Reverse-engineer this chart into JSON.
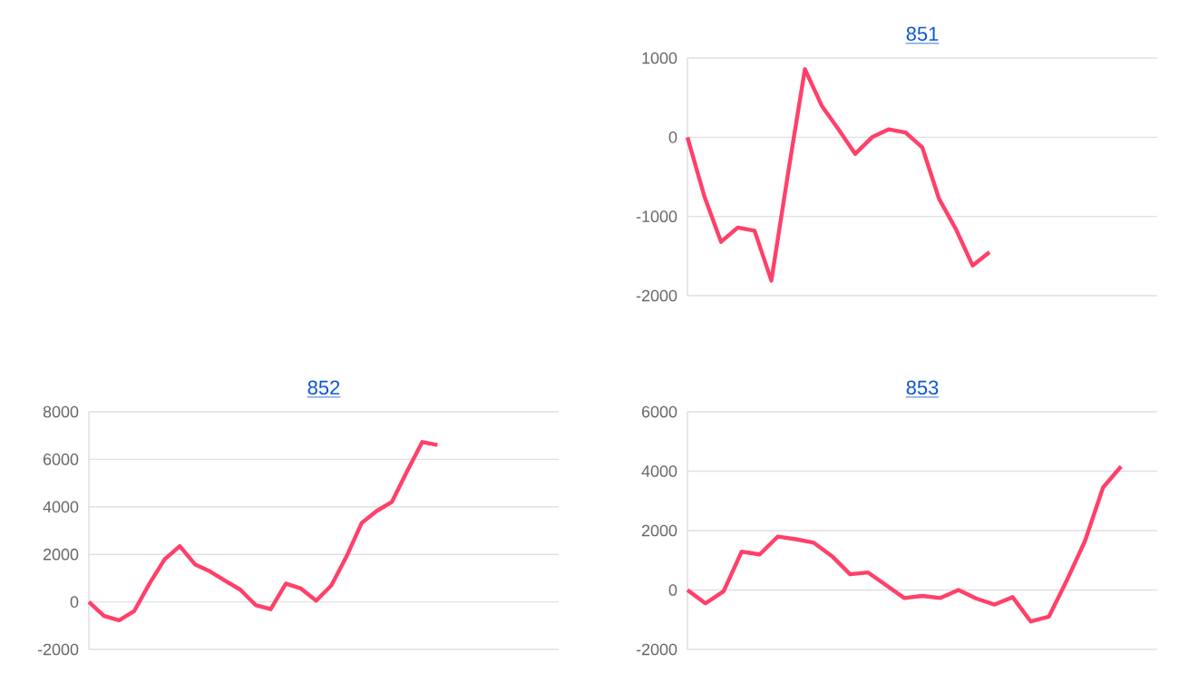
{
  "chart_data": [
    {
      "type": "line",
      "title": "851",
      "color": "#ff4069",
      "grid": "y",
      "tick_labels": "y",
      "ylim": [
        -2000,
        1000
      ],
      "yticks": [
        -2000,
        -1000,
        0,
        1000
      ],
      "categories": [
        null,
        null,
        null,
        null,
        null,
        null,
        null,
        null,
        null,
        null,
        null,
        null,
        null,
        null,
        null,
        null,
        null,
        null,
        null,
        null,
        null,
        null,
        null,
        null,
        null,
        null,
        null,
        null,
        null
      ],
      "values": [
        0,
        -740,
        -1320,
        -1140,
        -1180,
        -1810,
        -450,
        860,
        400,
        100,
        -210,
        0,
        100,
        60,
        -130,
        -780,
        -1160,
        -1620,
        -1450,
        null,
        null,
        null,
        null,
        null,
        null,
        null,
        null,
        null,
        null
      ]
    },
    {
      "type": "line",
      "title": "852",
      "color": "#ff4069",
      "grid": "y",
      "tick_labels": "y",
      "ylim": [
        -2000,
        8000
      ],
      "yticks": [
        -2000,
        0,
        2000,
        4000,
        6000,
        8000
      ],
      "categories": [
        null,
        null,
        null,
        null,
        null,
        null,
        null,
        null,
        null,
        null,
        null,
        null,
        null,
        null,
        null,
        null,
        null,
        null,
        null,
        null,
        null,
        null,
        null,
        null,
        null,
        null,
        null,
        null,
        null,
        null,
        null,
        null
      ],
      "values": [
        0,
        -590,
        -770,
        -380,
        770,
        1790,
        2350,
        1580,
        1280,
        890,
        510,
        -130,
        -310,
        770,
        560,
        50,
        690,
        1910,
        3320,
        3830,
        4210,
        5500,
        6730,
        6600,
        null,
        null,
        null,
        null,
        null,
        null,
        null,
        null
      ]
    },
    {
      "type": "line",
      "title": "853",
      "color": "#ff4069",
      "grid": "y",
      "tick_labels": "y",
      "ylim": [
        -2000,
        6000
      ],
      "yticks": [
        -2000,
        0,
        2000,
        4000,
        6000
      ],
      "categories": [
        null,
        null,
        null,
        null,
        null,
        null,
        null,
        null,
        null,
        null,
        null,
        null,
        null,
        null,
        null,
        null,
        null,
        null,
        null,
        null,
        null,
        null,
        null,
        null,
        null,
        null,
        null
      ],
      "values": [
        0,
        -450,
        -40,
        1290,
        1200,
        1800,
        1710,
        1590,
        1140,
        530,
        590,
        160,
        -270,
        -200,
        -270,
        0,
        -290,
        -490,
        -240,
        -1060,
        -900,
        330,
        1650,
        3450,
        4160,
        null,
        null
      ]
    }
  ]
}
